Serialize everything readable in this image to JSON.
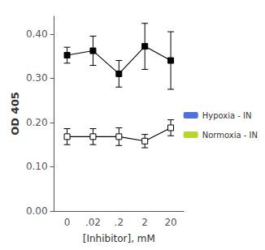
{
  "chart_data": {
    "type": "line",
    "categories": [
      "0",
      ".02",
      ".2",
      "2",
      "20"
    ],
    "xlabel": "[Inhibitor], mM",
    "ylabel": "OD 405",
    "ylim": [
      0.0,
      0.44
    ],
    "yticks": [
      {
        "value": 0.0,
        "label": "0.00"
      },
      {
        "value": 0.1,
        "label": "0.10"
      },
      {
        "value": 0.2,
        "label": "0.20"
      },
      {
        "value": 0.3,
        "label": "0.30"
      },
      {
        "value": 0.4,
        "label": "0.40"
      }
    ],
    "grid": false,
    "legend": "right",
    "series": [
      {
        "name": "Hypoxia - IN",
        "color": "#000000",
        "marker": "filled_square",
        "line_style": "solid",
        "values": [
          0.352,
          0.362,
          0.31,
          0.372,
          0.34
        ],
        "errors": [
          0.018,
          0.033,
          0.03,
          0.052,
          0.065
        ]
      },
      {
        "name": "Normoxia - IN",
        "color": "#000000",
        "marker": "open_square",
        "line_style": "solid",
        "values": [
          0.168,
          0.168,
          0.168,
          0.158,
          0.188
        ],
        "errors": [
          0.018,
          0.018,
          0.02,
          0.015,
          0.018
        ]
      }
    ]
  }
}
